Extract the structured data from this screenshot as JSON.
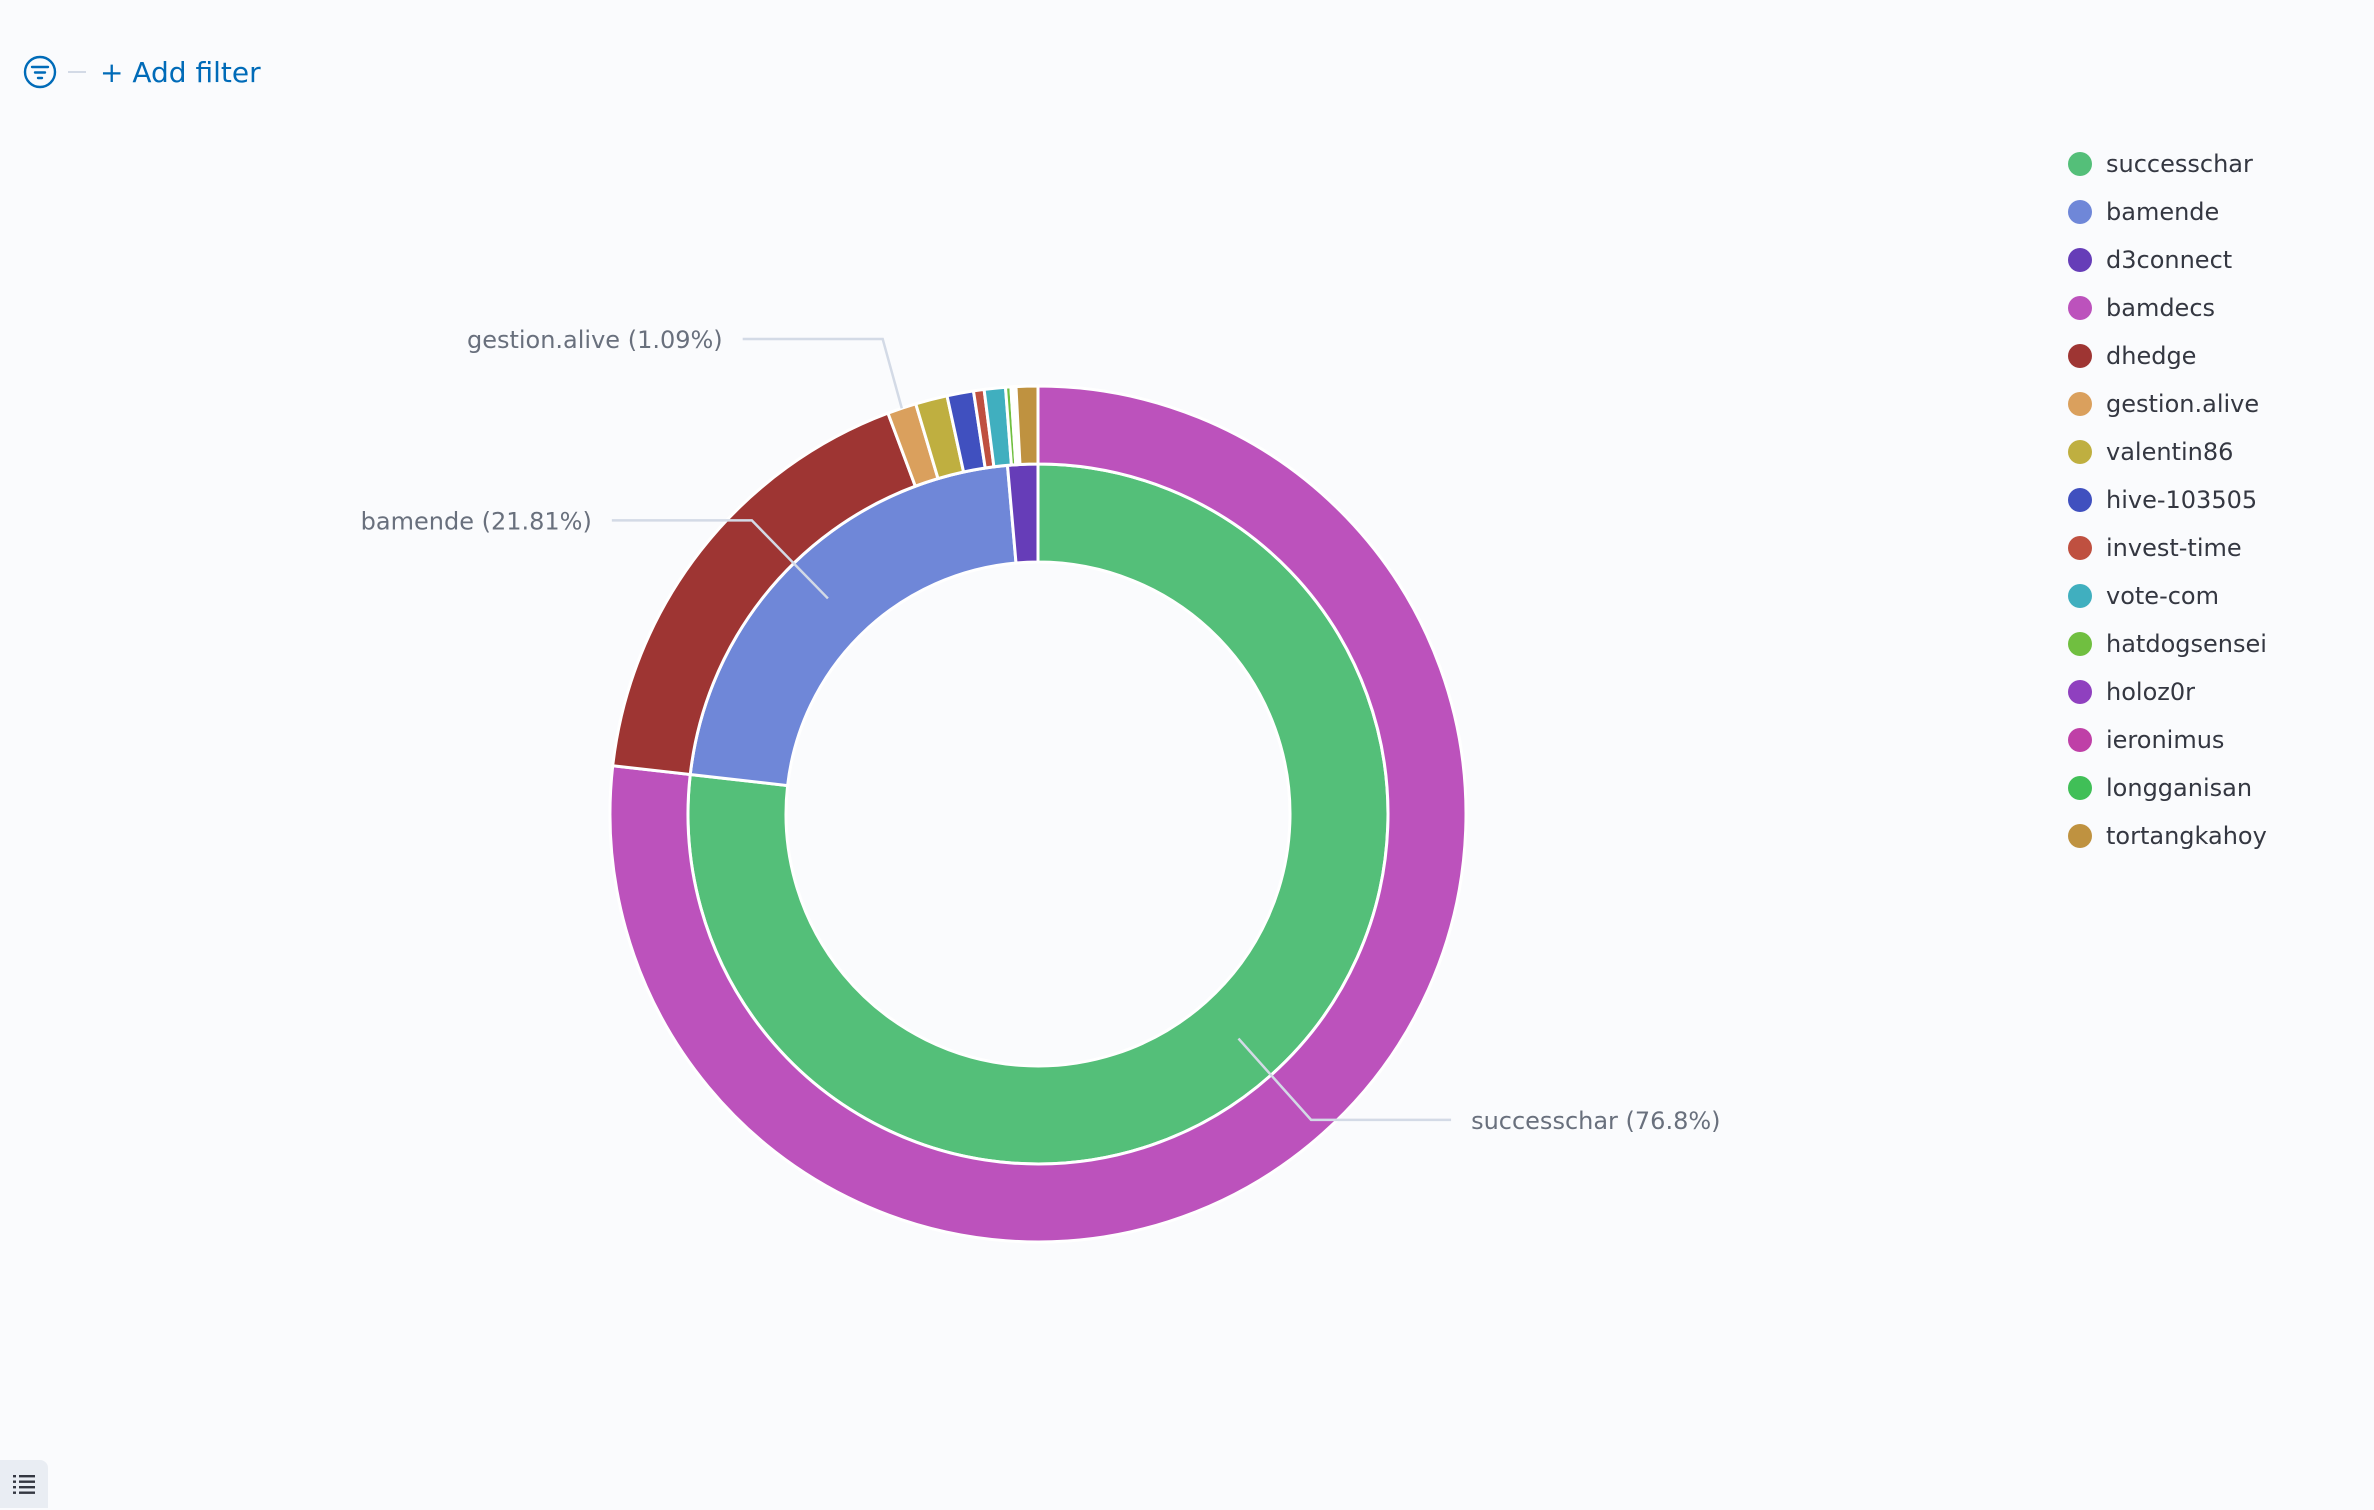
{
  "filter_bar": {
    "add_filter_label": "+ Add filter"
  },
  "colors": {
    "accent": "#006bb8",
    "label_text": "#69707d",
    "legend_text": "#343741"
  },
  "legend": [
    {
      "label": "successchar",
      "color": "#54bf79"
    },
    {
      "label": "bamende",
      "color": "#6f87d8"
    },
    {
      "label": "d3connect",
      "color": "#663db8"
    },
    {
      "label": "bamdecs",
      "color": "#bc52bc"
    },
    {
      "label": "dhedge",
      "color": "#9e3533"
    },
    {
      "label": "gestion.alive",
      "color": "#daa05d"
    },
    {
      "label": "valentin86",
      "color": "#bfaf40"
    },
    {
      "label": "hive-103505",
      "color": "#4050bf"
    },
    {
      "label": "invest-time",
      "color": "#bf5040"
    },
    {
      "label": "vote-com",
      "color": "#40afbf"
    },
    {
      "label": "hatdogsensei",
      "color": "#70bf40"
    },
    {
      "label": "holoz0r",
      "color": "#8f40bf"
    },
    {
      "label": "ieronimus",
      "color": "#bf40a7"
    },
    {
      "label": "longganisan",
      "color": "#40bf57"
    },
    {
      "label": "tortangkahoy",
      "color": "#bf9240"
    }
  ],
  "chart_data": {
    "type": "pie",
    "donut": true,
    "rings": [
      {
        "ring": "inner",
        "slices": [
          {
            "label": "successchar",
            "percent": 76.8,
            "color": "#54bf79"
          },
          {
            "label": "bamende",
            "percent": 21.81,
            "color": "#6f87d8"
          },
          {
            "label": "d3connect",
            "percent": 1.39,
            "color": "#663db8"
          }
        ]
      },
      {
        "ring": "outer",
        "slices": [
          {
            "label": "bamdecs",
            "percent": 76.8,
            "color": "#bc52bc"
          },
          {
            "label": "dhedge",
            "percent": 17.5,
            "color": "#9e3533"
          },
          {
            "label": "gestion.alive",
            "percent": 1.09,
            "color": "#daa05d"
          },
          {
            "label": "valentin86",
            "percent": 1.2,
            "color": "#bfaf40"
          },
          {
            "label": "hive-103505",
            "percent": 1.0,
            "color": "#4050bf"
          },
          {
            "label": "invest-time",
            "percent": 0.4,
            "color": "#bf5040"
          },
          {
            "label": "vote-com",
            "percent": 0.8,
            "color": "#40afbf"
          },
          {
            "label": "hatdogsensei",
            "percent": 0.2,
            "color": "#70bf40"
          },
          {
            "label": "holoz0r",
            "percent": 0.08,
            "color": "#8f40bf"
          },
          {
            "label": "ieronimus",
            "percent": 0.06,
            "color": "#bf40a7"
          },
          {
            "label": "longganisan",
            "percent": 0.05,
            "color": "#40bf57"
          },
          {
            "label": "tortangkahoy",
            "percent": 0.82,
            "color": "#bf9240"
          }
        ]
      }
    ],
    "callouts": [
      {
        "text": "gestion.alive (1.09%)",
        "ring": "outer",
        "slice": "gestion.alive"
      },
      {
        "text": "bamende (21.81%)",
        "ring": "inner",
        "slice": "bamende"
      },
      {
        "text": "successchar (76.8%)",
        "ring": "inner",
        "slice": "successchar"
      }
    ],
    "legend_position": "right"
  }
}
